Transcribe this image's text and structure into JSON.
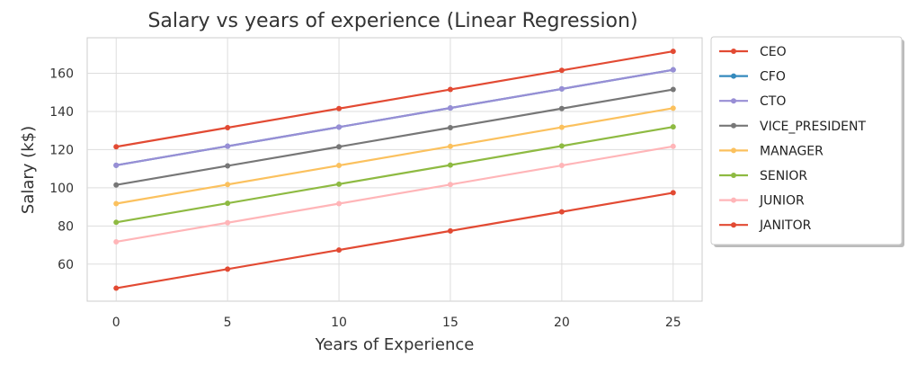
{
  "chart_data": {
    "type": "line",
    "title": "Salary vs years of experience (Linear Regression)",
    "xlabel": "Years of Experience",
    "ylabel": "Salary (k$)",
    "x": [
      0,
      5,
      10,
      15,
      20,
      25
    ],
    "xticks": [
      0,
      5,
      10,
      15,
      20,
      25
    ],
    "yticks": [
      60,
      80,
      100,
      120,
      140,
      160
    ],
    "xlim": [
      -1.3,
      26.3
    ],
    "ylim": [
      40.6,
      178.6
    ],
    "grid": true,
    "legend_position": "outside-right",
    "series": [
      {
        "name": "CEO",
        "color": "#e24a33",
        "values": [
          121.5,
          131.5,
          141.5,
          151.5,
          161.5,
          171.5
        ]
      },
      {
        "name": "CFO",
        "color": "#348abd",
        "values": [
          111.8,
          121.8,
          131.8,
          141.8,
          151.8,
          161.8
        ]
      },
      {
        "name": "CTO",
        "color": "#988ed5",
        "values": [
          111.8,
          121.8,
          131.8,
          141.8,
          151.8,
          161.8
        ]
      },
      {
        "name": "VICE_PRESIDENT",
        "color": "#777777",
        "values": [
          101.5,
          111.5,
          121.5,
          131.5,
          141.5,
          151.5
        ]
      },
      {
        "name": "MANAGER",
        "color": "#fbc15e",
        "values": [
          91.7,
          101.7,
          111.7,
          121.7,
          131.7,
          141.7
        ]
      },
      {
        "name": "SENIOR",
        "color": "#8eba42",
        "values": [
          81.9,
          91.9,
          101.9,
          111.9,
          121.9,
          131.9
        ]
      },
      {
        "name": "JUNIOR",
        "color": "#ffb5b8",
        "values": [
          71.7,
          81.7,
          91.7,
          101.7,
          111.7,
          121.7
        ]
      },
      {
        "name": "JANITOR",
        "color": "#e24a33",
        "values": [
          47.4,
          57.4,
          67.4,
          77.4,
          87.4,
          97.4
        ]
      }
    ]
  }
}
